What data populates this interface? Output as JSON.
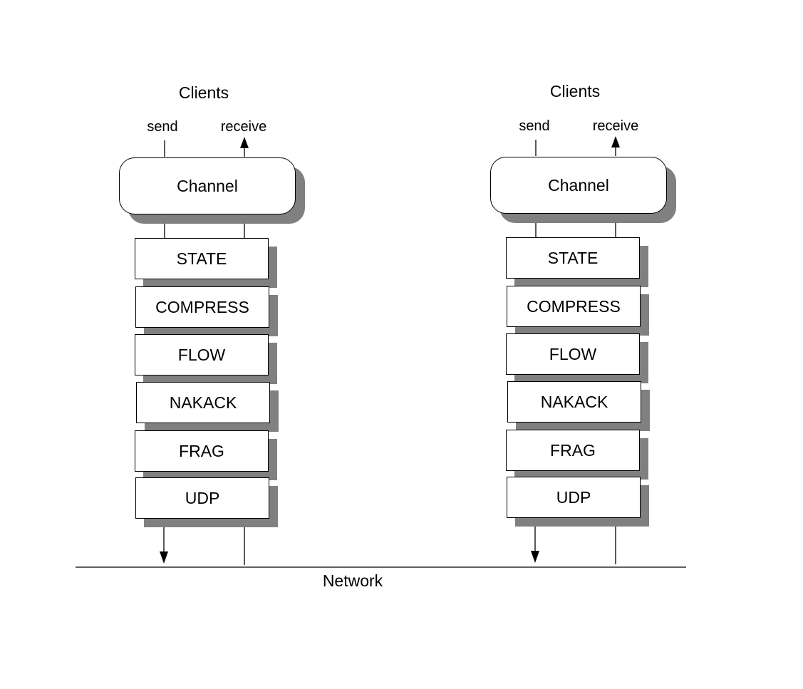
{
  "stacks": [
    {
      "clients_label": "Clients",
      "send_label": "send",
      "receive_label": "receive",
      "channel_label": "Channel",
      "layers": [
        "STATE",
        "COMPRESS",
        "FLOW",
        "NAKACK",
        "FRAG",
        "UDP"
      ]
    },
    {
      "clients_label": "Clients",
      "send_label": "send",
      "receive_label": "receive",
      "channel_label": "Channel",
      "layers": [
        "STATE",
        "COMPRESS",
        "FLOW",
        "NAKACK",
        "FRAG",
        "UDP"
      ]
    }
  ],
  "network_label": "Network",
  "colors": {
    "shadow": "#808080",
    "line": "#000000",
    "box_fill": "#ffffff"
  }
}
